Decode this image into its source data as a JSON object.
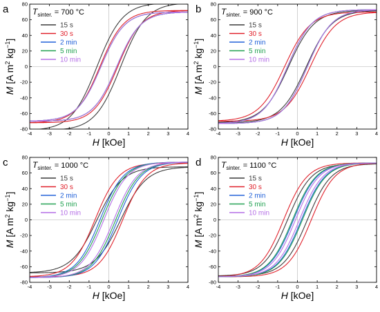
{
  "legend_colors": [
    "#3a3a3a",
    "#e0202a",
    "#2060d8",
    "#20a050",
    "#b46ee6"
  ],
  "chart_data": [
    {
      "type": "line",
      "panel_label": "a",
      "temp_label": {
        "T": "T",
        "sub": "sinter.",
        "value": " = 700 °C"
      },
      "xlabel": {
        "var": "H",
        "unit": "  [kOe]"
      },
      "ylabel": {
        "var": "M",
        "unit": " [A m",
        "sup1": "2",
        "mid": " kg",
        "sup2": "−1",
        "end": "]"
      },
      "xlim": [
        -4,
        4
      ],
      "ylim": [
        -80,
        80
      ],
      "xticks": [
        "-4",
        "-3",
        "-2",
        "-1",
        "0",
        "1",
        "2",
        "3",
        "4"
      ],
      "yticks": [
        "-80",
        "-60",
        "-40",
        "-20",
        "0",
        "20",
        "40",
        "60",
        "80"
      ],
      "series": [
        {
          "name": "15 s",
          "Ms": 82,
          "Hc": 0.6,
          "w": 1.3
        },
        {
          "name": "30 s",
          "Ms": 72,
          "Hc": 0.45,
          "w": 1.2
        },
        {
          "name": "2 min",
          "Ms": 70,
          "Hc": 0.4,
          "w": 1.2
        },
        {
          "name": "5 min",
          "Ms": 70,
          "Hc": 0.4,
          "w": 1.2
        },
        {
          "name": "10 min",
          "Ms": 70,
          "Hc": 0.4,
          "w": 1.2
        }
      ]
    },
    {
      "type": "line",
      "panel_label": "b",
      "temp_label": {
        "T": "T",
        "sub": "sinter.",
        "value": " = 900 °C"
      },
      "xlabel": {
        "var": "H",
        "unit": " [kOe]"
      },
      "ylabel": {
        "var": "M",
        "unit": " [A m",
        "sup1": "2",
        "mid": " kg",
        "sup2": "−1",
        "end": "]"
      },
      "xlim": [
        -4,
        4
      ],
      "ylim": [
        -80,
        80
      ],
      "xticks": [
        "-4",
        "-3",
        "-2",
        "-1",
        "0",
        "1",
        "2",
        "3",
        "4"
      ],
      "yticks": [
        "-80",
        "-60",
        "-40",
        "-20",
        "0",
        "20",
        "40",
        "60",
        "80"
      ],
      "series": [
        {
          "name": "15 s",
          "Ms": 72,
          "Hc": 0.45,
          "w": 1.3
        },
        {
          "name": "30 s",
          "Ms": 70,
          "Hc": 0.65,
          "w": 1.3
        },
        {
          "name": "2 min",
          "Ms": 73,
          "Hc": 0.5,
          "w": 1.25
        },
        {
          "name": "5 min",
          "Ms": 73,
          "Hc": 0.5,
          "w": 1.25
        },
        {
          "name": "10 min",
          "Ms": 73,
          "Hc": 0.5,
          "w": 1.25
        }
      ]
    },
    {
      "type": "line",
      "panel_label": "c",
      "temp_label": {
        "T": "T",
        "sub": "sinter.",
        "value": " = 1000 °C"
      },
      "xlabel": {
        "var": "H",
        "unit": " [kOe]"
      },
      "ylabel": {
        "var": "M",
        "unit": " [A m",
        "sup1": "2",
        "mid": " kg",
        "sup2": "−1",
        "end": "]"
      },
      "xlim": [
        -4,
        4
      ],
      "ylim": [
        -80,
        80
      ],
      "xticks": [
        "-4",
        "-3",
        "-2",
        "-1",
        "0",
        "1",
        "2",
        "3",
        "4"
      ],
      "yticks": [
        "-80",
        "-60",
        "-40",
        "-20",
        "0",
        "20",
        "40",
        "60",
        "80"
      ],
      "series": [
        {
          "name": "15 s",
          "Ms": 68,
          "Hc": 0.6,
          "w": 1.3
        },
        {
          "name": "30 s",
          "Ms": 73,
          "Hc": 0.7,
          "w": 1.2
        },
        {
          "name": "2 min",
          "Ms": 74,
          "Hc": 0.45,
          "w": 1.2
        },
        {
          "name": "5 min",
          "Ms": 74,
          "Hc": 0.35,
          "w": 1.2
        },
        {
          "name": "10 min",
          "Ms": 74,
          "Hc": 0.25,
          "w": 1.2
        }
      ]
    },
    {
      "type": "line",
      "panel_label": "d",
      "temp_label": {
        "T": "T",
        "sub": "sinter.",
        "value": " = 1100 °C"
      },
      "xlabel": {
        "var": "H",
        "unit": " [kOe]"
      },
      "ylabel": {
        "var": "M",
        "unit": " [A m",
        "sup1": "2",
        "mid": " kg",
        "sup2": "−1",
        "end": "]"
      },
      "xlim": [
        -4,
        4
      ],
      "ylim": [
        -80,
        80
      ],
      "xticks": [
        "-4",
        "-3",
        "-2",
        "-1",
        "0",
        "1",
        "2",
        "3",
        "4"
      ],
      "yticks": [
        "-80",
        "-60",
        "-40",
        "-20",
        "0",
        "20",
        "40",
        "60",
        "80"
      ],
      "series": [
        {
          "name": "15 s",
          "Ms": 72,
          "Hc": 0.5,
          "w": 1.2
        },
        {
          "name": "30 s",
          "Ms": 73,
          "Hc": 0.7,
          "w": 1.2
        },
        {
          "name": "2 min",
          "Ms": 73,
          "Hc": 0.2,
          "w": 1.2
        },
        {
          "name": "5 min",
          "Ms": 73,
          "Hc": 0.25,
          "w": 1.2
        },
        {
          "name": "10 min",
          "Ms": 73,
          "Hc": 0.1,
          "w": 1.2
        }
      ]
    }
  ]
}
